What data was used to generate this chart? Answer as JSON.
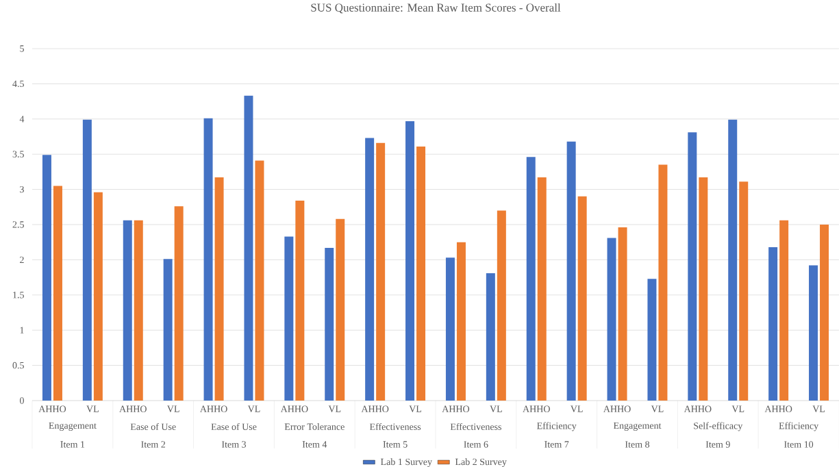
{
  "chart_data": {
    "type": "bar",
    "title": "SUS Questionnaire: Mean Raw Item Scores - Overall",
    "categories": [
      "AHHO",
      "VL",
      "AHHO",
      "VL",
      "AHHO",
      "VL",
      "AHHO",
      "VL",
      "AHHO",
      "VL",
      "AHHO",
      "VL",
      "AHHO",
      "VL",
      "AHHO",
      "VL",
      "AHHO",
      "VL",
      "AHHO",
      "VL"
    ],
    "series": [
      {
        "name": "Lab 1 Survey",
        "color": "#4472c4",
        "values": [
          3.49,
          3.99,
          2.56,
          2.01,
          4.01,
          4.33,
          2.33,
          2.17,
          3.73,
          3.97,
          2.03,
          1.81,
          3.46,
          3.68,
          2.31,
          1.73,
          3.81,
          3.99,
          2.18,
          1.92
        ]
      },
      {
        "name": "Lab 2 Survey",
        "color": "#ed7d31",
        "values": [
          3.05,
          2.96,
          2.56,
          2.76,
          3.17,
          3.41,
          2.84,
          2.58,
          3.66,
          3.61,
          2.25,
          2.7,
          3.17,
          2.9,
          2.46,
          3.35,
          3.17,
          3.11,
          2.56,
          2.5
        ]
      }
    ],
    "ylim": [
      0,
      5
    ],
    "yticks": [
      0,
      0.5,
      1,
      1.5,
      2,
      2.5,
      3,
      3.5,
      4,
      4.5,
      5
    ],
    "grid": "y",
    "legend": "bottom",
    "annotations": [
      "Engagement",
      "Item 1",
      "Ease of Use",
      "Item 2",
      "Ease of Use",
      "Item 3",
      "Error Tolerance",
      "Item 4",
      "Effectiveness",
      "Item 5",
      "Effectiveness",
      "Item 6",
      "Efficiency",
      "Item 7",
      "Engagement",
      "Item 8",
      "Self-efficacy",
      "Item 9",
      "Efficiency",
      "Item 10"
    ]
  }
}
